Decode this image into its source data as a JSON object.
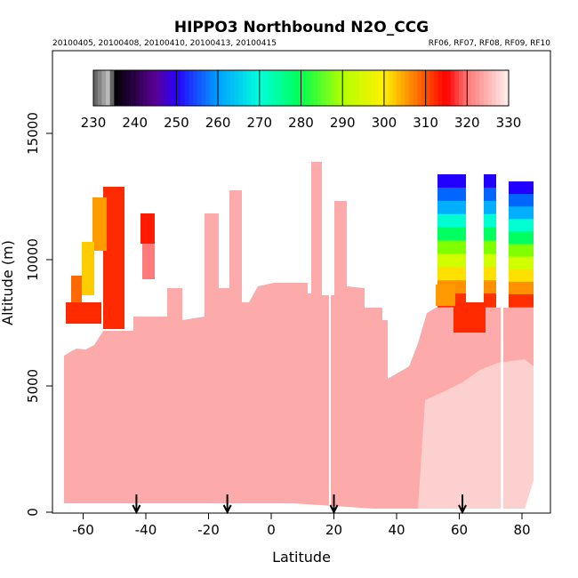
{
  "chart_data": {
    "type": "heatmap",
    "title": "HIPPO3 Northbound N2O_CCG",
    "subtitle_left": "20100405, 20100408, 20100410, 20100413, 20100415",
    "subtitle_right": "RF06, RF07, RF08, RF09, RF10",
    "xlabel": "Latitude",
    "ylabel": "Altitude (m)",
    "xlim": [
      -70,
      88
    ],
    "ylim": [
      0,
      18000
    ],
    "x_ticks": [
      "-60",
      "-40",
      "-20",
      "0",
      "20",
      "40",
      "60",
      "80"
    ],
    "y_ticks": [
      "0",
      "5000",
      "10000",
      "15000"
    ],
    "colorbar": {
      "min": 230,
      "max": 330,
      "tick_labels": [
        "230",
        "240",
        "250",
        "260",
        "270",
        "280",
        "290",
        "300",
        "310",
        "320",
        "330"
      ]
    },
    "profile_markers_latitude": [
      -43,
      -14,
      20,
      61
    ],
    "colors": {
      "background_fill": "#fdaaaa",
      "high_lat_fill": "#fdd0d0",
      "orange_red": "#ff2a00"
    }
  }
}
